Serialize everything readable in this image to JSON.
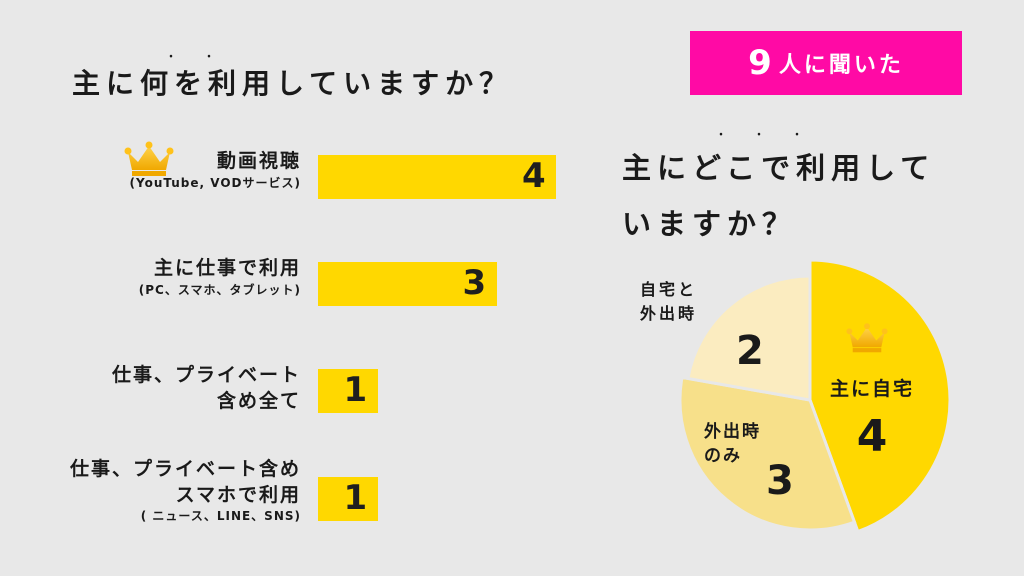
{
  "left_title": "主に何を利用していますか？",
  "badge": {
    "number": "9",
    "text": "人に聞いた"
  },
  "right_title": {
    "line1": "主にどこで利用して",
    "line2": "いますか？"
  },
  "colors": {
    "bar": "#ffd800",
    "badge": "#ff0aa5",
    "pie_main": "#ffd800",
    "pie_mid": "#f7e08a",
    "pie_light": "#fbecc0"
  },
  "chart_data": [
    {
      "type": "bar",
      "orientation": "horizontal",
      "title": "主に何を利用していますか？",
      "categories": [
        "動画視聴 (YouTube, VODサービス)",
        "主に仕事で利用 (PC、スマホ、タブレット)",
        "仕事、プライベート含めて全て",
        "仕事、プライベート含めスマホで利用 ( ニュース、LINE、SNS)"
      ],
      "values": [
        4,
        3,
        1,
        1
      ],
      "rows": [
        {
          "main": [
            "動画視聴"
          ],
          "sub": "(YouTube, VODサービス)",
          "value": "4"
        },
        {
          "main": [
            "主に仕事で利用"
          ],
          "sub": "(PC、スマホ、タブレット)",
          "value": "3"
        },
        {
          "main": [
            "仕事、プライベート",
            "含め全て"
          ],
          "sub": "",
          "value": "1"
        },
        {
          "main": [
            "仕事、プライベート含め",
            "スマホで利用"
          ],
          "sub": "( ニュース、LINE、SNS)",
          "value": "1"
        }
      ],
      "max": 4
    },
    {
      "type": "pie",
      "title": "主にどこで利用していますか？",
      "slices": [
        {
          "label": "主に自宅",
          "value": 4
        },
        {
          "label": "外出時のみ",
          "value": 3
        },
        {
          "label": "自宅と外出時",
          "value": 2
        }
      ],
      "labels": {
        "main": "主に自宅",
        "main_val": "4",
        "mid_l1": "外出時",
        "mid_l2": "のみ",
        "mid_val": "3",
        "light_l1": "自宅と",
        "light_l2": "外出時",
        "light_val": "2"
      }
    }
  ],
  "icons": [
    "crown-icon"
  ]
}
